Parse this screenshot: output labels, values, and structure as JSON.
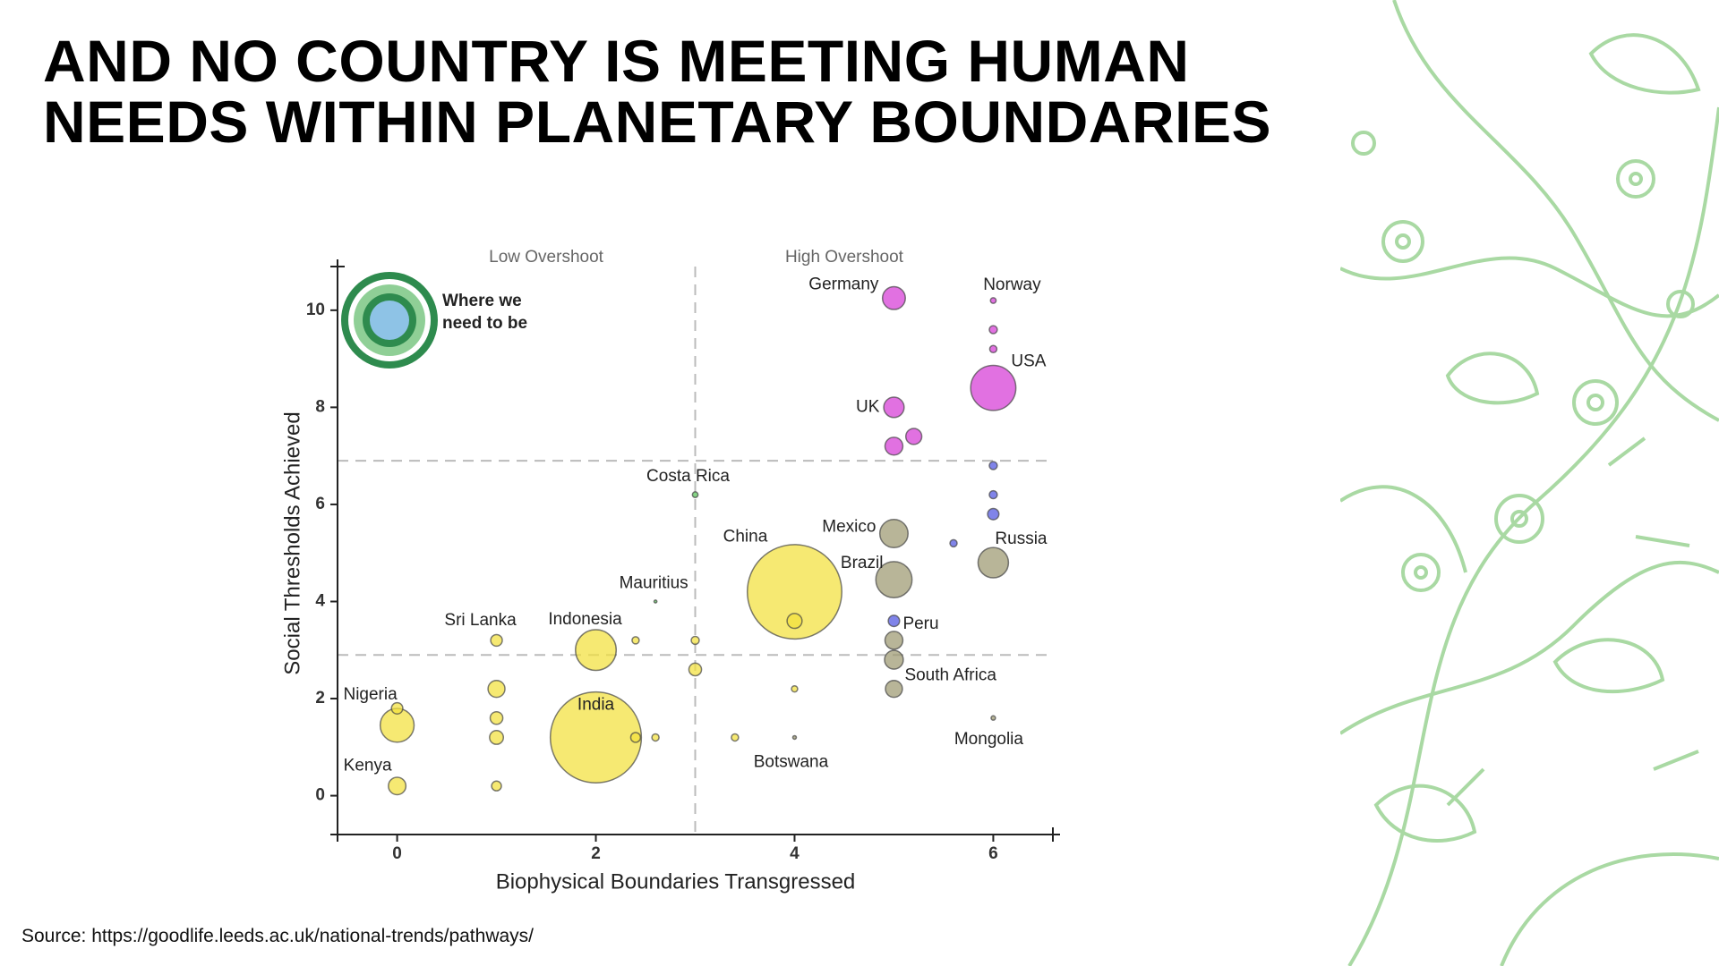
{
  "title": "AND NO COUNTRY IS MEETING HUMAN NEEDS WITHIN PLANETARY BOUNDARIES",
  "source": "Source: https://goodlife.leeds.ac.uk/national-trends/pathways/",
  "chart_data": {
    "type": "bubble",
    "x_label": "Biophysical Boundaries Transgressed",
    "y_label": "Social Thresholds Achieved",
    "region_labels": [
      "Low Overshoot",
      "High Overshoot"
    ],
    "annotation": "Where we need to be",
    "xlim": [
      -0.6,
      6.6
    ],
    "ylim": [
      -0.8,
      10.9
    ],
    "xticks": [
      0,
      2,
      4,
      6
    ],
    "yticks": [
      0,
      2,
      4,
      6,
      8,
      10
    ],
    "thresholds": {
      "x": 3,
      "y": [
        2.9,
        6.9
      ]
    },
    "labels": [
      "China",
      "India",
      "USA",
      "Indonesia",
      "Brazil",
      "Nigeria",
      "Russia",
      "Mexico",
      "Germany",
      "UK",
      "South Africa",
      "Kenya",
      "Sri Lanka",
      "Peru",
      "Costa Rica",
      "Mauritius",
      "Botswana",
      "Mongolia",
      "Norway",
      null,
      null,
      null,
      null,
      null,
      null,
      null,
      null,
      null,
      null,
      null,
      null,
      null,
      null,
      null,
      null,
      null,
      null,
      null,
      null,
      null,
      null,
      null
    ],
    "x": [
      4,
      2,
      6,
      2,
      5,
      0,
      6,
      5,
      5,
      5,
      5,
      0,
      1,
      5,
      3,
      2.6,
      4,
      6,
      6,
      5,
      5.2,
      6,
      6,
      6,
      6,
      6,
      5.6,
      5,
      5,
      4,
      3,
      3,
      1,
      1,
      1,
      1,
      2.4,
      3.4,
      4,
      0,
      2.4,
      2.6
    ],
    "values": [
      4.2,
      1.2,
      8.4,
      3.0,
      4.45,
      1.45,
      4.8,
      5.4,
      10.25,
      8.0,
      2.8,
      0.2,
      3.2,
      3.6,
      6.2,
      4.0,
      1.2,
      1.6,
      10.2,
      7.2,
      7.4,
      9.6,
      9.2,
      6.8,
      6.2,
      5.8,
      5.2,
      3.2,
      2.2,
      3.6,
      2.6,
      3.2,
      2.2,
      1.6,
      1.2,
      0.2,
      1.2,
      1.2,
      2.2,
      1.8,
      3.2,
      1.2
    ],
    "sizes": [
      1400,
      1300,
      320,
      260,
      205,
      180,
      145,
      125,
      82,
      65,
      55,
      48,
      21,
      20,
      5,
      1.3,
      2,
      3,
      5,
      50,
      40,
      10,
      8,
      10,
      10,
      20,
      8,
      50,
      45,
      35,
      25,
      10,
      45,
      25,
      30,
      15,
      15,
      8,
      6,
      20,
      8,
      8
    ],
    "colors": [
      "#f3e03b",
      "#f3e03b",
      "#d53ad6",
      "#f3e03b",
      "#9c9870",
      "#f3e03b",
      "#9c9870",
      "#9c9870",
      "#d53ad6",
      "#d53ad6",
      "#9c9870",
      "#f3e03b",
      "#f3e03b",
      "#4f55e0",
      "#56c456",
      "#56c456",
      "#9c9870",
      "#9c9870",
      "#d53ad6",
      "#d53ad6",
      "#d53ad6",
      "#d53ad6",
      "#d53ad6",
      "#4f55e0",
      "#4f55e0",
      "#4f55e0",
      "#4f55e0",
      "#9c9870",
      "#9c9870",
      "#f3e03b",
      "#f3e03b",
      "#f3e03b",
      "#f3e03b",
      "#f3e03b",
      "#f3e03b",
      "#f3e03b",
      "#f3e03b",
      "#f3e03b",
      "#f3e03b",
      "#f3e03b",
      "#f3e03b",
      "#f3e03b"
    ]
  }
}
